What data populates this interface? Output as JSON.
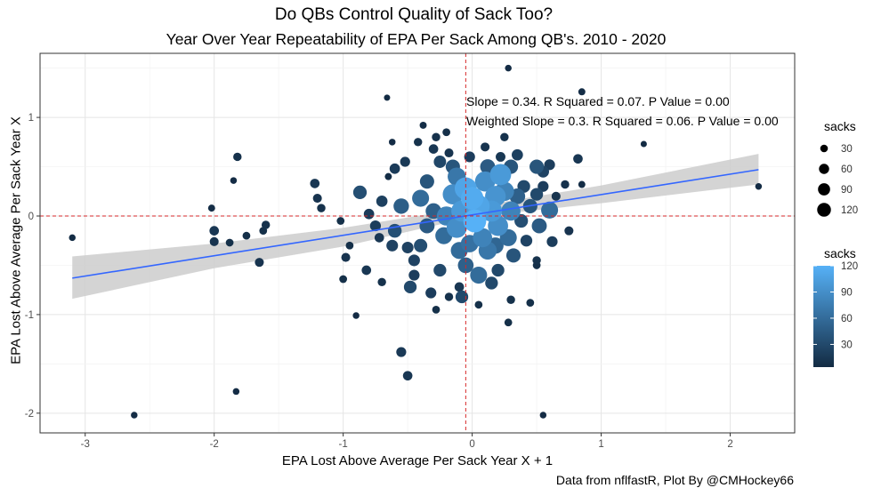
{
  "chart_data": {
    "type": "scatter",
    "title": "Do QBs Control Quality of Sack Too?",
    "subtitle": "Year Over Year Repeatability of EPA Per Sack Among QB's. 2010 - 2020",
    "xlabel": "EPA Lost Above Average Per Sack Year X + 1",
    "ylabel": "EPA Lost Above Average Per Sack Year X",
    "caption": "Data from nflfastR, Plot By @CMHockey66",
    "xlim": [
      -3.35,
      2.5
    ],
    "ylim": [
      -2.2,
      1.65
    ],
    "x_ticks": [
      -3,
      -2,
      -1,
      0,
      1,
      2
    ],
    "x_tick_labels": [
      "-3",
      "-2",
      "-1",
      "0",
      "1",
      "2"
    ],
    "y_ticks": [
      -2,
      -1,
      0,
      1
    ],
    "y_tick_labels": [
      "-2",
      "-1",
      "0",
      "1"
    ],
    "grid": true,
    "reference_lines": {
      "x": -0.05,
      "y": 0,
      "style": "dashed",
      "color": "#d62728"
    },
    "annotations": [
      "Slope = 0.34. R Squared = 0.07. P Value = 0.00",
      "Weighted Slope = 0.3. R Squared = 0.06. P Value = 0.00"
    ],
    "fit": {
      "x": [
        -3.1,
        2.22
      ],
      "y": [
        -0.63,
        0.47
      ],
      "band_x": [
        -3.1,
        -2.0,
        -1.0,
        0.0,
        1.0,
        2.22
      ],
      "band_lo": [
        -0.84,
        -0.53,
        -0.31,
        -0.01,
        0.13,
        0.32
      ],
      "band_hi": [
        -0.41,
        -0.28,
        -0.12,
        0.09,
        0.31,
        0.63
      ],
      "color": "#3366ff",
      "band_color": "#cccccc"
    },
    "legend_size": {
      "title": "sacks",
      "values": [
        30,
        60,
        90,
        120
      ],
      "labels": [
        "30",
        "60",
        "90",
        "120"
      ]
    },
    "legend_color": {
      "title": "sacks",
      "values": [
        30,
        60,
        90,
        120
      ],
      "labels": [
        "30",
        "60",
        "90",
        "120"
      ],
      "low": "#132b43",
      "high": "#56b1f7"
    },
    "points": [
      [
        -3.1,
        -0.22,
        5
      ],
      [
        -2.62,
        -2.02,
        5
      ],
      [
        -1.83,
        -1.78,
        5
      ],
      [
        -1.85,
        0.36,
        5
      ],
      [
        -1.82,
        0.6,
        10
      ],
      [
        -2.02,
        0.08,
        6
      ],
      [
        -2.0,
        -0.15,
        14
      ],
      [
        -2.0,
        -0.26,
        12
      ],
      [
        -1.88,
        -0.27,
        8
      ],
      [
        -1.75,
        -0.2,
        8
      ],
      [
        -1.65,
        -0.47,
        12
      ],
      [
        -1.6,
        -0.09,
        10
      ],
      [
        -1.62,
        -0.15,
        8
      ],
      [
        -1.22,
        0.33,
        14
      ],
      [
        -1.2,
        0.18,
        12
      ],
      [
        -1.17,
        0.08,
        10
      ],
      [
        -1.02,
        -0.05,
        8
      ],
      [
        -0.98,
        -0.42,
        12
      ],
      [
        -1.0,
        -0.64,
        8
      ],
      [
        -0.9,
        -1.01,
        5
      ],
      [
        -0.95,
        -0.3,
        8
      ],
      [
        -0.87,
        0.24,
        35
      ],
      [
        -0.82,
        -0.55,
        14
      ],
      [
        -0.75,
        -0.1,
        20
      ],
      [
        -0.72,
        -0.22,
        14
      ],
      [
        -0.7,
        -0.67,
        10
      ],
      [
        -0.65,
        0.4,
        6
      ],
      [
        -0.66,
        1.2,
        4
      ],
      [
        -0.62,
        0.75,
        5
      ],
      [
        -0.55,
        -1.38,
        16
      ],
      [
        -0.5,
        -1.62,
        14
      ],
      [
        -0.62,
        -0.3,
        24
      ],
      [
        -0.6,
        -0.15,
        36
      ],
      [
        -0.55,
        0.1,
        48
      ],
      [
        -0.5,
        -0.32,
        24
      ],
      [
        -0.48,
        -0.72,
        30
      ],
      [
        -0.45,
        -0.6,
        20
      ],
      [
        -0.45,
        -0.45,
        24
      ],
      [
        -0.4,
        0.18,
        60
      ],
      [
        -0.35,
        0.35,
        40
      ],
      [
        -0.42,
        0.75,
        10
      ],
      [
        -0.38,
        0.92,
        6
      ],
      [
        -0.3,
        0.68,
        14
      ],
      [
        -0.28,
        0.8,
        10
      ],
      [
        -0.2,
        0.85,
        8
      ],
      [
        -0.18,
        0.64,
        12
      ],
      [
        -0.32,
        -0.78,
        20
      ],
      [
        -0.28,
        -0.95,
        8
      ],
      [
        -0.25,
        -0.55,
        30
      ],
      [
        -0.22,
        -0.2,
        60
      ],
      [
        -0.2,
        0.0,
        80
      ],
      [
        -0.15,
        0.22,
        90
      ],
      [
        -0.12,
        0.4,
        70
      ],
      [
        -0.3,
        0.05,
        50
      ],
      [
        -0.35,
        -0.1,
        45
      ],
      [
        -0.1,
        -0.35,
        60
      ],
      [
        -0.12,
        -0.12,
        90
      ],
      [
        -0.08,
        0.05,
        100
      ],
      [
        -0.15,
        0.5,
        40
      ],
      [
        -0.05,
        0.28,
        110
      ],
      [
        -0.05,
        -0.5,
        50
      ],
      [
        -0.1,
        -0.72,
        14
      ],
      [
        -0.08,
        -0.82,
        30
      ],
      [
        -0.18,
        -0.82,
        10
      ],
      [
        -0.02,
        0.6,
        20
      ],
      [
        0.0,
        0.18,
        115
      ],
      [
        0.02,
        -0.05,
        120
      ],
      [
        0.05,
        0.1,
        110
      ],
      [
        0.08,
        -0.22,
        80
      ],
      [
        0.1,
        0.35,
        90
      ],
      [
        0.12,
        -0.35,
        70
      ],
      [
        0.15,
        0.05,
        100
      ],
      [
        0.18,
        0.2,
        95
      ],
      [
        0.2,
        -0.1,
        90
      ],
      [
        0.22,
        0.42,
        100
      ],
      [
        0.25,
        0.25,
        80
      ],
      [
        0.28,
        -0.22,
        60
      ],
      [
        0.3,
        0.05,
        80
      ],
      [
        0.05,
        -0.6,
        60
      ],
      [
        0.1,
        0.7,
        12
      ],
      [
        0.05,
        -0.9,
        8
      ],
      [
        0.15,
        -0.68,
        30
      ],
      [
        0.2,
        -0.55,
        30
      ],
      [
        0.22,
        0.6,
        15
      ],
      [
        0.25,
        0.8,
        10
      ],
      [
        0.28,
        1.5,
        5
      ],
      [
        0.3,
        0.5,
        40
      ],
      [
        0.32,
        -0.4,
        40
      ],
      [
        0.35,
        0.2,
        50
      ],
      [
        0.38,
        -0.05,
        35
      ],
      [
        0.4,
        0.3,
        30
      ],
      [
        0.42,
        -0.25,
        25
      ],
      [
        0.45,
        0.1,
        40
      ],
      [
        0.5,
        0.5,
        40
      ],
      [
        0.5,
        0.22,
        30
      ],
      [
        0.52,
        -0.1,
        45
      ],
      [
        0.55,
        0.45,
        25
      ],
      [
        0.6,
        0.06,
        60
      ],
      [
        0.6,
        0.52,
        20
      ],
      [
        0.62,
        -0.26,
        20
      ],
      [
        0.5,
        -0.45,
        10
      ],
      [
        0.5,
        -0.5,
        8
      ],
      [
        0.55,
        0.3,
        20
      ],
      [
        0.65,
        0.2,
        12
      ],
      [
        0.72,
        0.32,
        10
      ],
      [
        0.75,
        -0.15,
        12
      ],
      [
        0.82,
        0.58,
        14
      ],
      [
        0.85,
        0.32,
        6
      ],
      [
        0.85,
        1.26,
        6
      ],
      [
        0.3,
        -0.85,
        10
      ],
      [
        0.28,
        -1.08,
        8
      ],
      [
        0.45,
        -0.88,
        8
      ],
      [
        0.55,
        -2.02,
        5
      ],
      [
        1.33,
        0.73,
        4
      ],
      [
        2.22,
        0.3,
        5
      ],
      [
        -0.8,
        0.02,
        18
      ],
      [
        -0.7,
        0.15,
        22
      ],
      [
        -0.25,
        0.55,
        28
      ],
      [
        0.35,
        0.62,
        22
      ],
      [
        -0.4,
        -0.3,
        34
      ],
      [
        0.18,
        -0.3,
        55
      ],
      [
        -0.02,
        -0.28,
        65
      ],
      [
        0.12,
        0.5,
        45
      ],
      [
        -0.52,
        0.55,
        16
      ],
      [
        -0.6,
        0.48,
        18
      ]
    ]
  }
}
